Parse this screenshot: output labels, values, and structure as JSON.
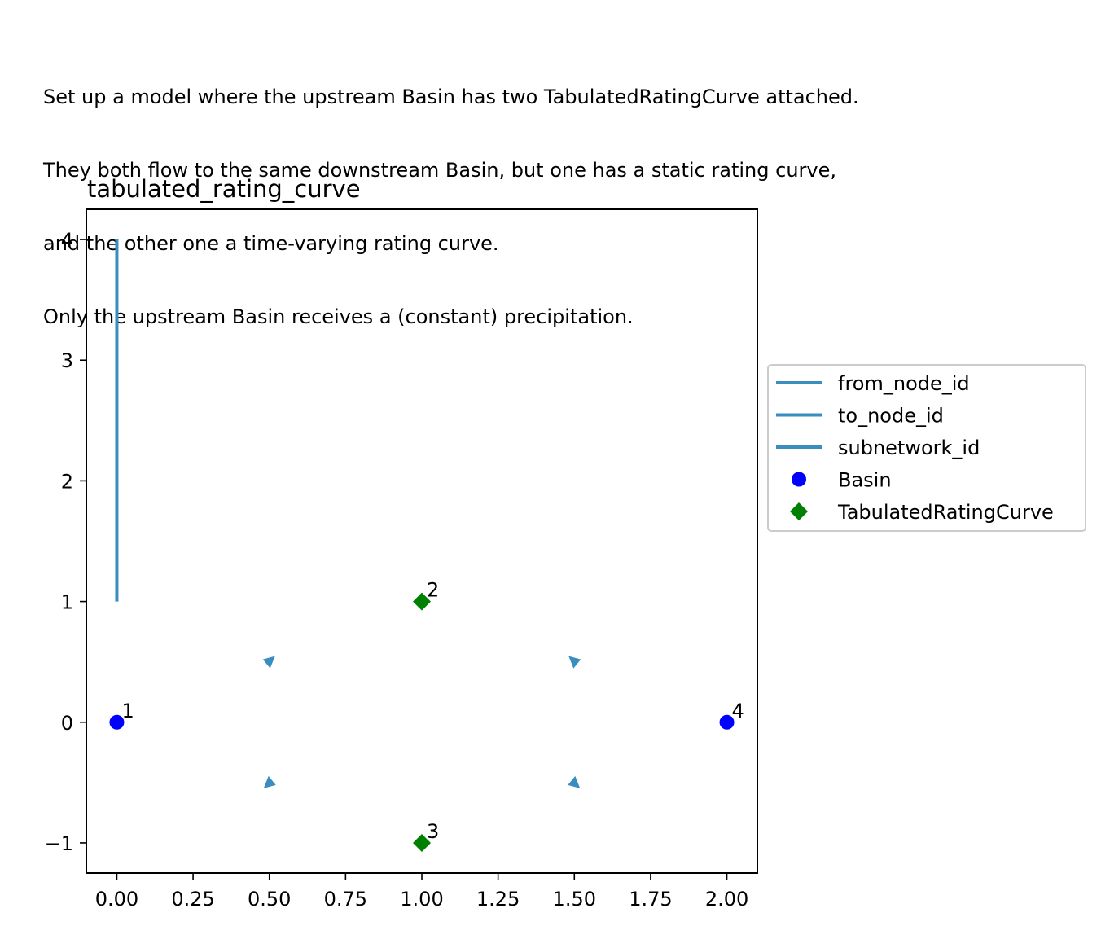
{
  "description": [
    "Set up a model where the upstream Basin has two TabulatedRatingCurve attached.",
    "They both flow to the same downstream Basin, but one has a static rating curve,",
    "and the other one a time-varying rating curve.",
    "Only the upstream Basin receives a (constant) precipitation."
  ],
  "chart_data": {
    "type": "scatter",
    "title": "tabulated_rating_curve",
    "xlabel": "",
    "ylabel": "",
    "xlim": [
      -0.1,
      2.1
    ],
    "ylim": [
      -1.25,
      4.25
    ],
    "xticks": [
      0.0,
      0.25,
      0.5,
      0.75,
      1.0,
      1.25,
      1.5,
      1.75,
      2.0
    ],
    "xtick_labels": [
      "0.00",
      "0.25",
      "0.50",
      "0.75",
      "1.00",
      "1.25",
      "1.50",
      "1.75",
      "2.00"
    ],
    "yticks": [
      -1,
      0,
      1,
      2,
      3,
      4
    ],
    "ytick_labels": [
      "−1",
      "0",
      "1",
      "2",
      "3",
      "4"
    ],
    "grid": false,
    "legend_placement": "outside right",
    "legend": [
      {
        "label": "from_node_id",
        "kind": "line",
        "color": "#3a8ebf"
      },
      {
        "label": "to_node_id",
        "kind": "line",
        "color": "#3a8ebf"
      },
      {
        "label": "subnetwork_id",
        "kind": "line",
        "color": "#3a8ebf"
      },
      {
        "label": "Basin",
        "kind": "circle",
        "color": "#0000ff"
      },
      {
        "label": "TabulatedRatingCurve",
        "kind": "diamond",
        "color": "#008000"
      }
    ],
    "lines": [
      {
        "x": [
          0,
          0
        ],
        "y": [
          1,
          4
        ],
        "color": "#3a8ebf"
      }
    ],
    "edge_arrows": [
      {
        "x": 0.5,
        "y": 0.5,
        "direction": "up-right",
        "color": "#3a8ebf"
      },
      {
        "x": 1.5,
        "y": -0.5,
        "direction": "down-right",
        "color": "#3a8ebf"
      },
      {
        "x": 0.5,
        "y": -0.5,
        "direction": "down-left",
        "color": "#3a8ebf"
      },
      {
        "x": 1.5,
        "y": 0.5,
        "direction": "up-left",
        "color": "#3a8ebf"
      }
    ],
    "series": [
      {
        "name": "Basin",
        "marker": "circle",
        "color": "#0000ff",
        "points": [
          {
            "x": 0,
            "y": 0,
            "label": "1"
          },
          {
            "x": 2,
            "y": 0,
            "label": "4"
          }
        ]
      },
      {
        "name": "TabulatedRatingCurve",
        "marker": "diamond",
        "color": "#008000",
        "points": [
          {
            "x": 1,
            "y": 1,
            "label": "2"
          },
          {
            "x": 1,
            "y": -1,
            "label": "3"
          }
        ]
      }
    ]
  }
}
